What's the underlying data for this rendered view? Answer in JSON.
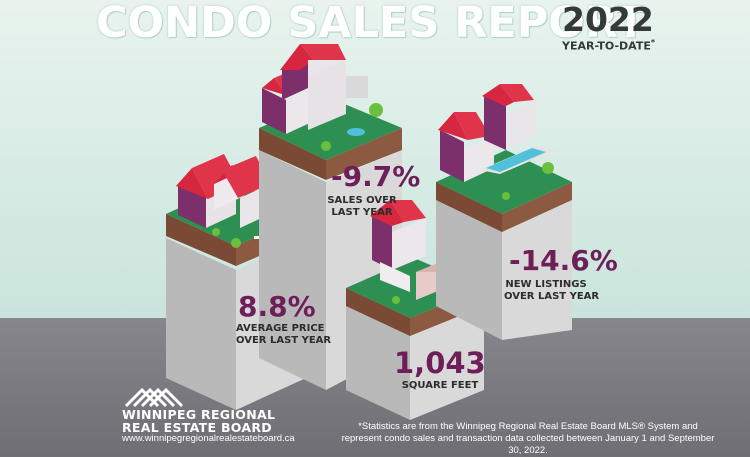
{
  "header": {
    "title": "CONDO SALES REPORT",
    "year": "2022",
    "period": "YEAR-TO-DATE",
    "period_mark": "*"
  },
  "stats": [
    {
      "value": "8.8%",
      "label_line1": "AVERAGE PRICE",
      "label_line2": "OVER LAST YEAR"
    },
    {
      "value": "-9.7%",
      "label_line1": "SALES OVER",
      "label_line2": "LAST YEAR"
    },
    {
      "value": "1,043",
      "label_line1": "SQUARE FEET",
      "label_line2": ""
    },
    {
      "value": "-14.6%",
      "label_line1": "NEW LISTINGS",
      "label_line2": "OVER LAST YEAR"
    }
  ],
  "brand": {
    "name_line1": "WINNIPEG REGIONAL",
    "name_line2": "REAL ESTATE BOARD",
    "url": "www.winnipegregionalrealestateboard.ca"
  },
  "footnote": "*Statistics are from the Winnipeg Regional Real Estate Board MLS® System and represent condo sales and transaction data collected between January 1 and September 30, 2022.",
  "colors": {
    "accent": "#6e1f5a",
    "roof": "#e0344a",
    "grass": "#2e8f52",
    "soil": "#7a4a34",
    "pillar": "#c8c8c8"
  }
}
